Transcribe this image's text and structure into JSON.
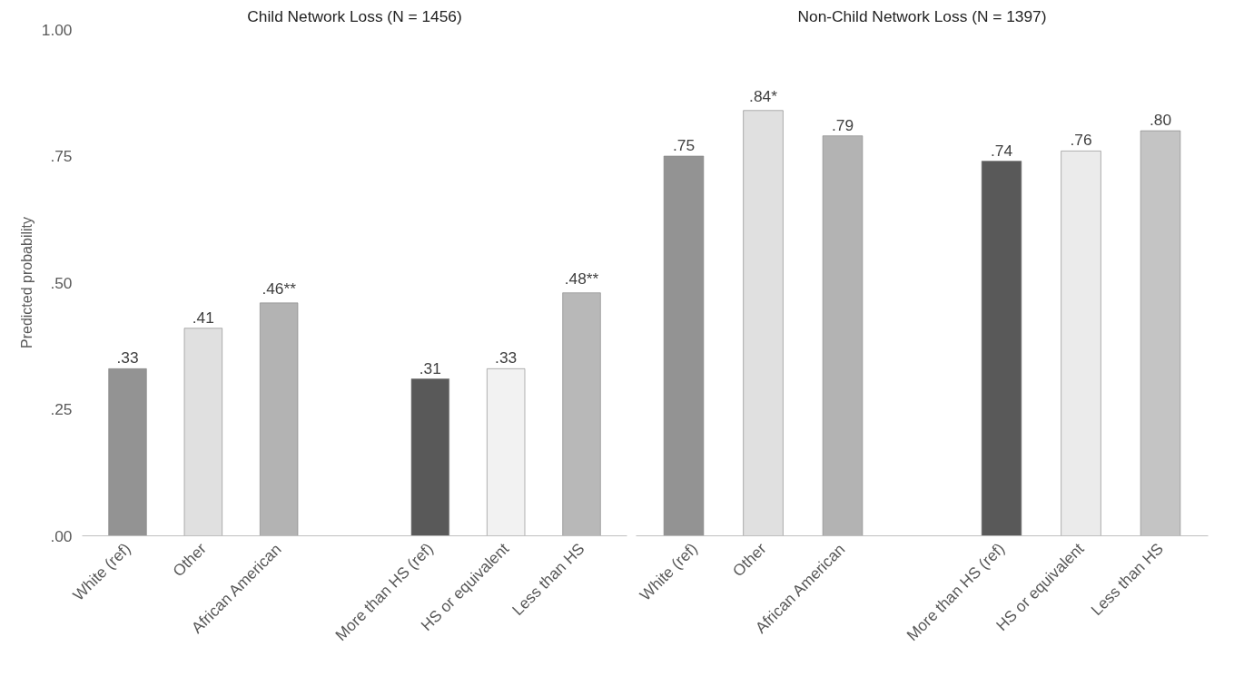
{
  "chart_data": [
    {
      "type": "bar",
      "title": "Child Network Loss (N = 1456)",
      "ylabel": "Predicted probability",
      "categories": [
        "White (ref)",
        "Other",
        "African American",
        null,
        "More than HS (ref)",
        "HS or equivalent",
        "Less than HS"
      ],
      "values": [
        0.33,
        0.41,
        0.46,
        null,
        0.31,
        0.33,
        0.48
      ],
      "colors": [
        "#939393",
        "#e0e0e0",
        "#b3b3b3",
        "#ffffff",
        "#595959",
        "#f2f2f2",
        "#b8b8b8"
      ],
      "value_labels": [
        ".33",
        ".41",
        ".46**",
        null,
        ".31",
        ".33",
        ".48**"
      ],
      "ylim": [
        0,
        1
      ],
      "yticks": [
        {
          "value": 0,
          "label": ".00"
        },
        {
          "value": 0.25,
          "label": ".25"
        },
        {
          "value": 0.5,
          "label": ".50"
        },
        {
          "value": 0.75,
          "label": ".75"
        },
        {
          "value": 1,
          "label": "1.00"
        }
      ],
      "grid": false,
      "legend": false
    },
    {
      "type": "bar",
      "title": "Non-Child Network Loss (N = 1397)",
      "categories": [
        "White (ref)",
        "Other",
        "African American",
        null,
        "More than HS (ref)",
        "HS or equivalent",
        "Less than HS"
      ],
      "values": [
        0.75,
        0.84,
        0.79,
        null,
        0.74,
        0.76,
        0.8
      ],
      "colors": [
        "#939393",
        "#e0e0e0",
        "#b3b3b3",
        "#ffffff",
        "#595959",
        "#ebebeb",
        "#c4c4c4"
      ],
      "value_labels": [
        ".75",
        ".84*",
        ".79",
        null,
        ".74",
        ".76",
        ".80"
      ],
      "ylim": [
        0,
        1
      ],
      "tick_labels": "x",
      "grid": false,
      "legend": false
    }
  ]
}
